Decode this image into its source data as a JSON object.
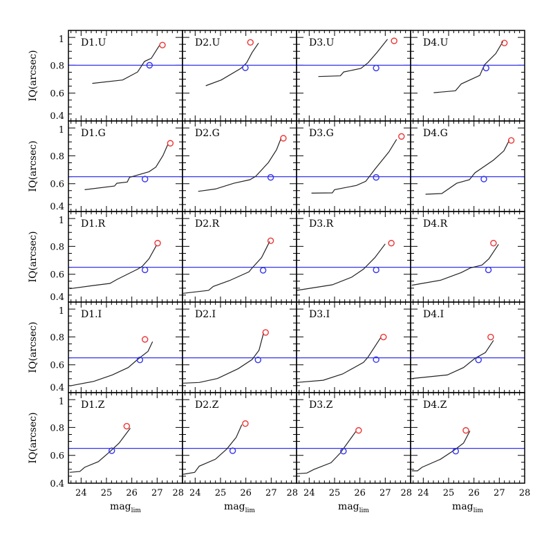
{
  "chart_data": {
    "type": "line",
    "layout": "grid 5 rows x 4 columns, shared axes",
    "xlabel": "mag",
    "xlabel_sub": "lim",
    "ylabel": "IQ(arcsec)",
    "xlim": [
      23.5,
      28
    ],
    "ylim": [
      0.4,
      1.05
    ],
    "xticks": [
      24,
      25,
      26,
      27,
      28
    ],
    "yticks": [
      0.4,
      0.6,
      0.8,
      1
    ],
    "ytick_labels": [
      "0.4",
      "0.6",
      "0.8",
      "1"
    ],
    "grid": false,
    "colors": {
      "curve": "#222222",
      "threshold_line": "#3333ee",
      "blue_marker": "#3333ee",
      "red_marker": "#ee3333",
      "frame": "#000000"
    },
    "panels": [
      {
        "label": "D1.U",
        "threshold": 0.8,
        "x": [
          24.44,
          25.64,
          26.23,
          26.5,
          26.77,
          27.09
        ],
        "y": [
          0.67,
          0.694,
          0.752,
          0.827,
          0.85,
          0.942
        ],
        "red": [
          27.21,
          0.945
        ],
        "blue": [
          26.7,
          0.8
        ]
      },
      {
        "label": "D2.U",
        "threshold": 0.8,
        "x": [
          24.42,
          25.03,
          25.8,
          26.03,
          26.25,
          26.5
        ],
        "y": [
          0.653,
          0.694,
          0.777,
          0.818,
          0.892,
          0.959
        ],
        "red": [
          26.18,
          0.964
        ],
        "blue": [
          25.98,
          0.782
        ]
      },
      {
        "label": "D3.U",
        "threshold": 0.8,
        "x": [
          24.36,
          25.23,
          25.36,
          26.04,
          26.32,
          26.68,
          27.09
        ],
        "y": [
          0.719,
          0.724,
          0.752,
          0.777,
          0.818,
          0.893,
          0.987
        ],
        "red": [
          27.35,
          0.975
        ],
        "blue": [
          26.64,
          0.78
        ]
      },
      {
        "label": "D4.U",
        "threshold": 0.8,
        "x": [
          24.41,
          25.27,
          25.5,
          26.23,
          26.41,
          26.86,
          27.14
        ],
        "y": [
          0.603,
          0.617,
          0.666,
          0.727,
          0.802,
          0.884,
          0.97
        ],
        "red": [
          27.2,
          0.96
        ],
        "blue": [
          26.48,
          0.78
        ]
      },
      {
        "label": "D1.G",
        "threshold": 0.65,
        "x": [
          24.14,
          25.32,
          25.41,
          25.82,
          25.91,
          26.68,
          26.95,
          27.23,
          27.43
        ],
        "y": [
          0.557,
          0.583,
          0.603,
          0.612,
          0.645,
          0.686,
          0.719,
          0.802,
          0.885
        ],
        "red": [
          27.52,
          0.89
        ],
        "blue": [
          26.52,
          0.633
        ]
      },
      {
        "label": "D2.G",
        "threshold": 0.65,
        "x": [
          24.12,
          24.8,
          25.53,
          26.16,
          26.39,
          26.89,
          27.21,
          27.39
        ],
        "y": [
          0.545,
          0.562,
          0.603,
          0.628,
          0.653,
          0.752,
          0.843,
          0.926
        ],
        "red": [
          27.48,
          0.926
        ],
        "blue": [
          26.98,
          0.645
        ]
      },
      {
        "label": "D3.G",
        "threshold": 0.65,
        "x": [
          24.09,
          24.91,
          25.0,
          25.86,
          26.23,
          26.59,
          27.14,
          27.45
        ],
        "y": [
          0.532,
          0.534,
          0.557,
          0.587,
          0.617,
          0.703,
          0.827,
          0.918
        ],
        "red": [
          27.64,
          0.939
        ],
        "blue": [
          26.64,
          0.645
        ]
      },
      {
        "label": "D4.G",
        "threshold": 0.65,
        "x": [
          24.09,
          24.73,
          25.32,
          25.82,
          26.04,
          26.77,
          27.18,
          27.39
        ],
        "y": [
          0.524,
          0.529,
          0.603,
          0.628,
          0.678,
          0.769,
          0.835,
          0.91
        ],
        "red": [
          27.47,
          0.91
        ],
        "blue": [
          26.39,
          0.633
        ]
      },
      {
        "label": "D1.R",
        "threshold": 0.65,
        "x": [
          23.55,
          24.41,
          25.14,
          25.41,
          26.23,
          26.41,
          26.68,
          26.98
        ],
        "y": [
          0.496,
          0.517,
          0.534,
          0.562,
          0.636,
          0.656,
          0.711,
          0.81
        ],
        "red": [
          27.02,
          0.823
        ],
        "blue": [
          26.52,
          0.631
        ]
      },
      {
        "label": "D2.R",
        "threshold": 0.65,
        "x": [
          23.53,
          24.53,
          24.71,
          25.35,
          26.12,
          26.25,
          26.62,
          26.94
        ],
        "y": [
          0.463,
          0.484,
          0.512,
          0.554,
          0.617,
          0.645,
          0.719,
          0.835
        ],
        "red": [
          26.98,
          0.84
        ],
        "blue": [
          26.68,
          0.628
        ]
      },
      {
        "label": "D3.R",
        "threshold": 0.65,
        "x": [
          23.5,
          24.91,
          25.68,
          26.14,
          26.59,
          27.0
        ],
        "y": [
          0.484,
          0.524,
          0.579,
          0.636,
          0.719,
          0.818
        ],
        "red": [
          27.24,
          0.823
        ],
        "blue": [
          26.64,
          0.631
        ]
      },
      {
        "label": "D4.R",
        "threshold": 0.65,
        "x": [
          23.55,
          24.68,
          25.5,
          25.86,
          26.32,
          26.59,
          26.97
        ],
        "y": [
          0.521,
          0.557,
          0.612,
          0.645,
          0.666,
          0.711,
          0.815
        ],
        "red": [
          26.77,
          0.823
        ],
        "blue": [
          26.57,
          0.631
        ]
      },
      {
        "label": "D1.I",
        "threshold": 0.65,
        "x": [
          23.55,
          24.5,
          25.23,
          25.86,
          26.23,
          26.64,
          26.82
        ],
        "y": [
          0.448,
          0.481,
          0.527,
          0.58,
          0.638,
          0.696,
          0.766
        ],
        "red": [
          26.52,
          0.782
        ],
        "blue": [
          26.32,
          0.635
        ]
      },
      {
        "label": "D2.I",
        "threshold": 0.65,
        "x": [
          23.53,
          24.16,
          24.88,
          25.7,
          26.25,
          26.52,
          26.7
        ],
        "y": [
          0.468,
          0.473,
          0.501,
          0.572,
          0.638,
          0.704,
          0.828
        ],
        "red": [
          26.78,
          0.832
        ],
        "blue": [
          26.48,
          0.635
        ]
      },
      {
        "label": "D3.I",
        "threshold": 0.65,
        "x": [
          23.5,
          24.55,
          25.32,
          26.14,
          26.32,
          26.82
        ],
        "y": [
          0.473,
          0.489,
          0.534,
          0.617,
          0.655,
          0.795
        ],
        "red": [
          26.93,
          0.799
        ],
        "blue": [
          26.64,
          0.637
        ]
      },
      {
        "label": "D4.I",
        "threshold": 0.65,
        "x": [
          23.55,
          24.95,
          25.59,
          26.04,
          26.45,
          26.77
        ],
        "y": [
          0.501,
          0.527,
          0.58,
          0.646,
          0.688,
          0.775
        ],
        "red": [
          26.66,
          0.799
        ],
        "blue": [
          26.18,
          0.635
        ]
      },
      {
        "label": "D1.Z",
        "threshold": 0.65,
        "x": [
          23.55,
          23.95,
          24.14,
          24.68,
          25.14,
          25.5,
          25.94
        ],
        "y": [
          0.478,
          0.484,
          0.514,
          0.555,
          0.627,
          0.688,
          0.795
        ],
        "red": [
          25.8,
          0.809
        ],
        "blue": [
          25.21,
          0.633
        ]
      },
      {
        "label": "D2.Z",
        "threshold": 0.65,
        "x": [
          23.53,
          23.98,
          24.16,
          24.8,
          25.25,
          25.62,
          25.84
        ],
        "y": [
          0.464,
          0.478,
          0.522,
          0.572,
          0.646,
          0.729,
          0.82
        ],
        "red": [
          25.98,
          0.828
        ],
        "blue": [
          25.48,
          0.633
        ]
      },
      {
        "label": "D3.Z",
        "threshold": 0.65,
        "x": [
          23.5,
          23.91,
          24.18,
          24.86,
          25.23,
          25.41,
          25.84
        ],
        "y": [
          0.468,
          0.473,
          0.498,
          0.547,
          0.617,
          0.663,
          0.771
        ],
        "red": [
          25.95,
          0.779
        ],
        "blue": [
          25.35,
          0.63
        ]
      },
      {
        "label": "D4.Z",
        "threshold": 0.65,
        "x": [
          23.55,
          23.77,
          23.95,
          24.68,
          25.23,
          25.59,
          25.84
        ],
        "y": [
          0.489,
          0.489,
          0.514,
          0.572,
          0.638,
          0.688,
          0.775
        ],
        "red": [
          25.68,
          0.779
        ],
        "blue": [
          25.28,
          0.63
        ]
      }
    ]
  }
}
